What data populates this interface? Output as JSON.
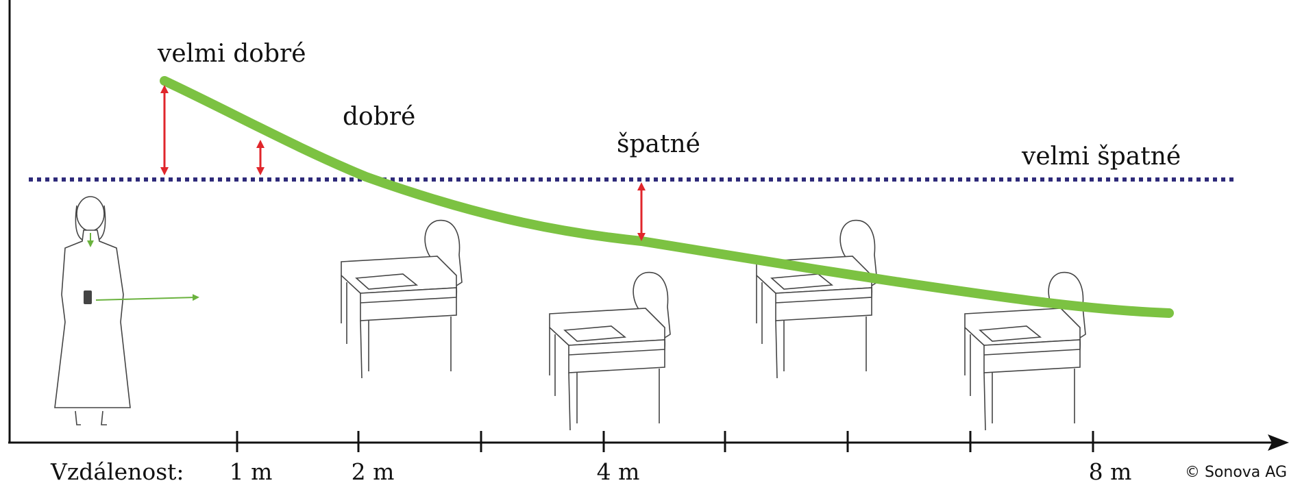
{
  "quality_labels": [
    "velmi dobré",
    "dobré",
    "špatné",
    "velmi špatné"
  ],
  "axis": {
    "label": "Vzdálenost:",
    "ticks": [
      "1 m",
      "2 m",
      "4 m",
      "8 m"
    ]
  },
  "copyright": "© Sonova AG"
}
